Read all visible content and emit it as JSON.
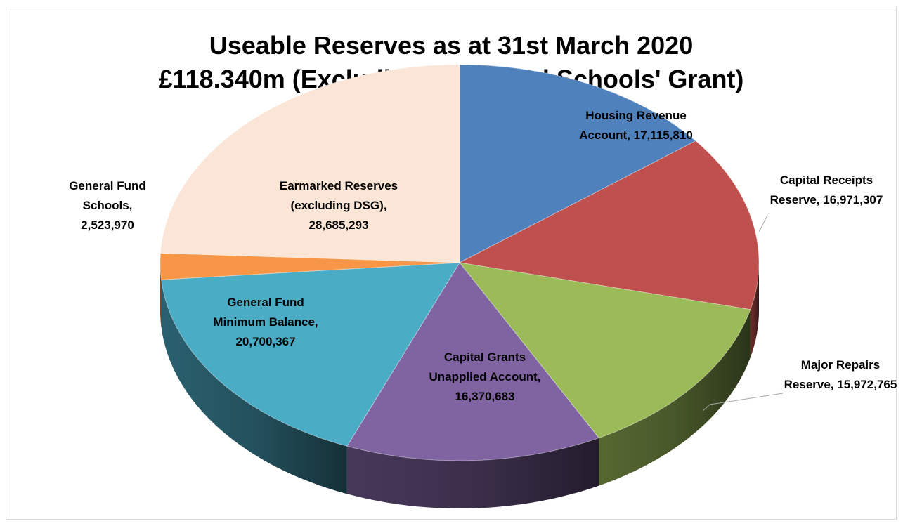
{
  "chart_data": {
    "type": "pie",
    "title_lines": [
      "Useable Reserves as at 31st March 2020",
      "£118.340m (Excluding Dedicated Schools' Grant)"
    ],
    "slices": [
      {
        "label_lines": [
          "Housing Revenue",
          "Account,  17,115,810"
        ],
        "value": 17115810,
        "color": "#4f81bd"
      },
      {
        "label_lines": [
          "Capital Receipts",
          "Reserve,  16,971,307"
        ],
        "value": 16971307,
        "color": "#c0504d"
      },
      {
        "label_lines": [
          "Major Repairs",
          "Reserve,  15,972,765"
        ],
        "value": 15972765,
        "color": "#9bbb59"
      },
      {
        "label_lines": [
          "Capital Grants",
          "Unapplied Account,",
          "16,370,683"
        ],
        "value": 16370683,
        "color": "#8064a2"
      },
      {
        "label_lines": [
          "General Fund",
          "Minimum Balance,",
          "20,700,367"
        ],
        "value": 20700367,
        "color": "#4bacc6"
      },
      {
        "label_lines": [
          "General Fund",
          "Schools,",
          "2,523,970"
        ],
        "value": 2523970,
        "color": "#f79646"
      },
      {
        "label_lines": [
          "Earmarked Reserves",
          "(excluding DSG),",
          "28,685,293"
        ],
        "value": 28685293,
        "color": "#fbe5d6"
      }
    ]
  }
}
